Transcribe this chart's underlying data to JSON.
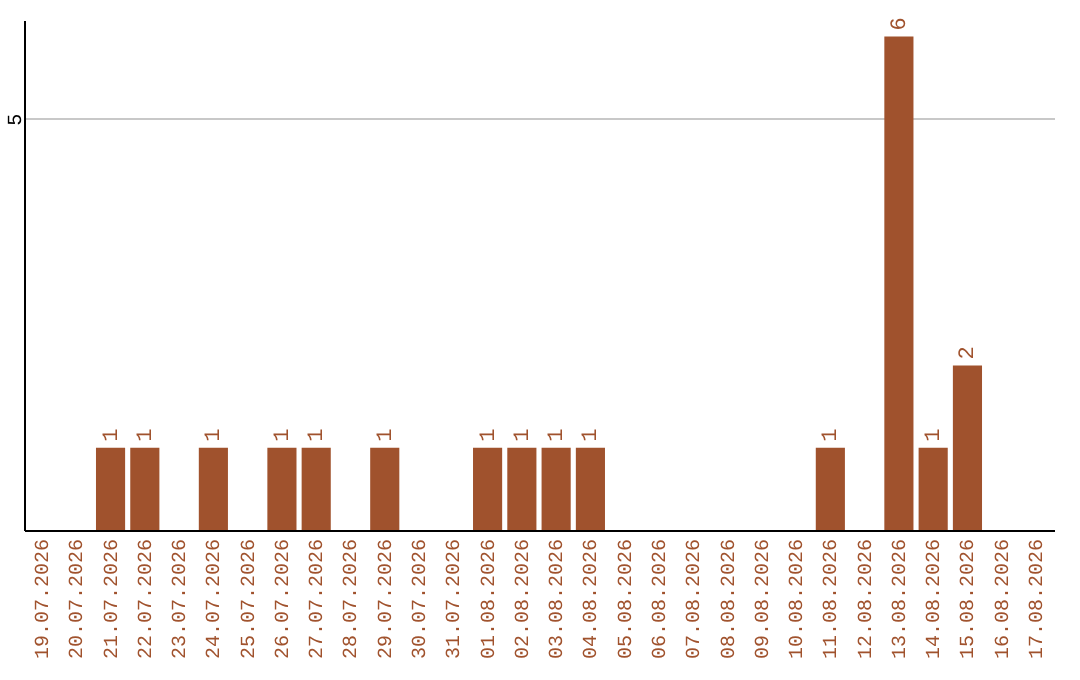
{
  "chart_data": {
    "type": "bar",
    "categories": [
      "19.07.2026",
      "20.07.2026",
      "21.07.2026",
      "22.07.2026",
      "23.07.2026",
      "24.07.2026",
      "25.07.2026",
      "26.07.2026",
      "27.07.2026",
      "28.07.2026",
      "29.07.2026",
      "30.07.2026",
      "31.07.2026",
      "01.08.2026",
      "02.08.2026",
      "03.08.2026",
      "04.08.2026",
      "05.08.2026",
      "06.08.2026",
      "07.08.2026",
      "08.08.2026",
      "09.08.2026",
      "10.08.2026",
      "11.08.2026",
      "12.08.2026",
      "13.08.2026",
      "14.08.2026",
      "15.08.2026",
      "16.08.2026",
      "17.08.2026"
    ],
    "values": [
      null,
      null,
      1,
      1,
      null,
      1,
      null,
      1,
      1,
      null,
      1,
      null,
      null,
      1,
      1,
      1,
      1,
      null,
      null,
      null,
      null,
      null,
      null,
      1,
      null,
      6,
      1,
      2,
      null,
      null
    ],
    "color": "#a0522d",
    "ylim": [
      0,
      6.2
    ],
    "yticks": [
      5
    ],
    "grid": "y",
    "data_labels": true
  }
}
